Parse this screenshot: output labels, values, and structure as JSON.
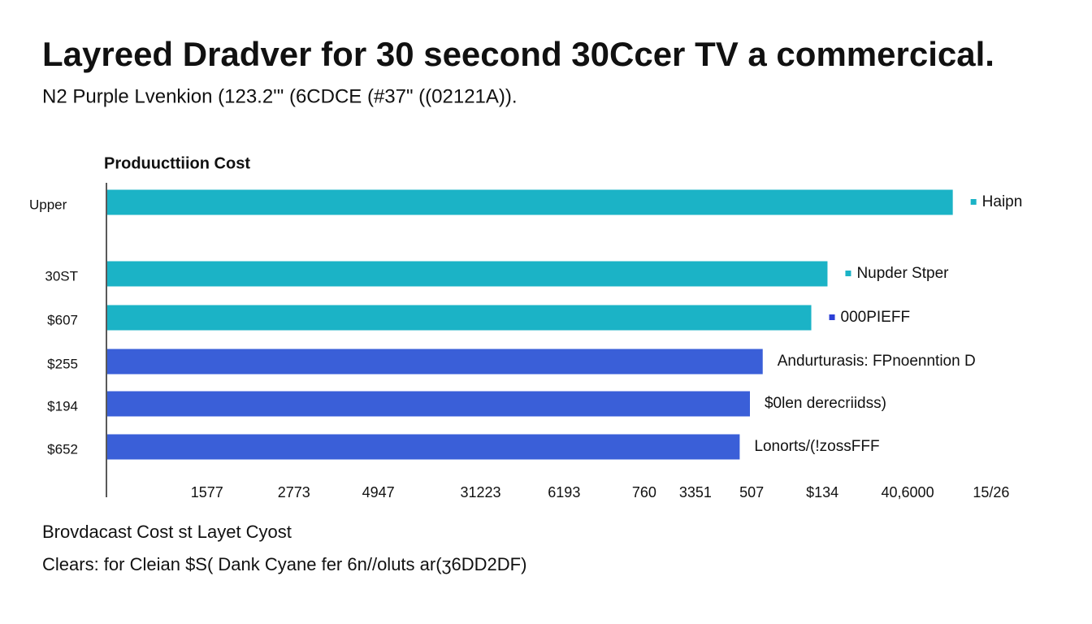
{
  "chart_data": {
    "type": "hbar",
    "title": "Layreed Dradver for 30 seecond 30Ccer TV a commercical.",
    "subtitle": "N2 Purple Lvenkion  (123.2'\" (6CDCE (#37\" ((02121A)).",
    "axis_title": "Produucttiion Cost",
    "footer_title": "Brovdacast Cost  st Layet Cyost",
    "footer_note": "Clears: for Cleian $S( Dank Cyane fer 6n//oluts ar(ʒ6DD2DF)",
    "categories": [
      "Upper",
      "30ST",
      "$607",
      "$255",
      "$194",
      "$652"
    ],
    "values": [
      99.3,
      84.6,
      82.7,
      77.0,
      75.5,
      74.3
    ],
    "colors": [
      "#1bb3c6",
      "#1bb3c6",
      "#1bb3c6",
      "#3a5fd8",
      "#3a5fd8",
      "#3a5fd8"
    ],
    "annotations": [
      {
        "text": "Haipn",
        "marker": "#1bb3c6"
      },
      {
        "text": "Nupder Stper",
        "marker": "#1bb3c6"
      },
      {
        "text": "000PIEFF",
        "marker": "#2b3fd6"
      },
      {
        "text": "Andurturasis: FPnoenntion D"
      },
      {
        "text": "$0len derecriidss)"
      },
      {
        "text": "Lonorts/(!zossFFF"
      }
    ],
    "xlim": [
      0,
      104
    ],
    "xticks": [
      {
        "value": 11.8,
        "label": "1577"
      },
      {
        "value": 22.0,
        "label": "2773"
      },
      {
        "value": 31.9,
        "label": "4947"
      },
      {
        "value": 43.9,
        "label": "31223"
      },
      {
        "value": 53.7,
        "label": "6193"
      },
      {
        "value": 63.1,
        "label": "760"
      },
      {
        "value": 69.1,
        "label": "3351"
      },
      {
        "value": 75.7,
        "label": "507"
      },
      {
        "value": 84.0,
        "label": "$134"
      },
      {
        "value": 94.0,
        "label": "40,6000"
      },
      {
        "value": 103.8,
        "label": "15/26"
      }
    ]
  }
}
